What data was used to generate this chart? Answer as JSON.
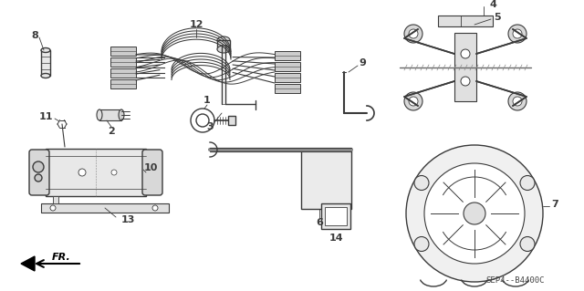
{
  "bg_color": "#ffffff",
  "line_color": "#3a3a3a",
  "watermark": "SEP4--B4400C",
  "fr_label": "FR.",
  "figsize": [
    6.4,
    3.19
  ],
  "dpi": 100
}
